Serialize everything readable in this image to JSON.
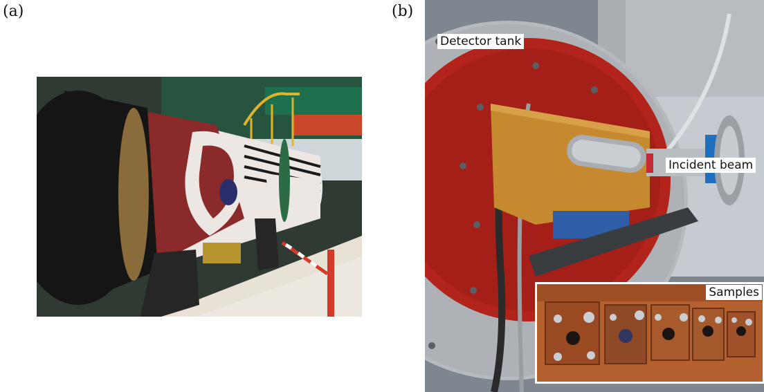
{
  "panels": {
    "a": {
      "label": "(a)"
    },
    "b": {
      "label": "(b)",
      "annotations": {
        "detector_tank": "Detector tank",
        "incident_beam": "Incident beam",
        "samples": "Samples"
      }
    }
  },
  "colors": {
    "tank_red": "#8b2a2a",
    "tank_black": "#151515",
    "flange_red": "#b2231c",
    "holder_gold": "#c7892f",
    "sample_copper": "#b4612f",
    "beam_blue": "#1f6fbf"
  }
}
